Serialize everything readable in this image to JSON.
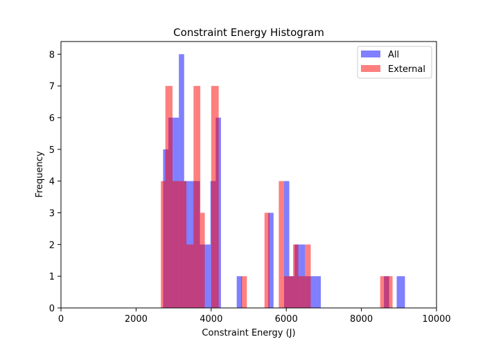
{
  "chart_data": {
    "type": "bar",
    "title": "Constraint Energy Histogram",
    "xlabel": "Constraint Energy (J)",
    "ylabel": "Frequency",
    "xlim": [
      0,
      10000
    ],
    "ylim": [
      0,
      8.4
    ],
    "xticks": [
      0,
      2000,
      4000,
      6000,
      8000,
      10000
    ],
    "yticks": [
      0,
      1,
      2,
      3,
      4,
      5,
      6,
      7,
      8
    ],
    "grid": false,
    "legend_position": "top-right",
    "series": [
      {
        "name": "All",
        "color": "#0000ff",
        "opacity": 0.5,
        "bins": [
          {
            "x0": 2720,
            "x1": 2860,
            "count": 5
          },
          {
            "x0": 2860,
            "x1": 3000,
            "count": 6
          },
          {
            "x0": 3000,
            "x1": 3140,
            "count": 6
          },
          {
            "x0": 3140,
            "x1": 3280,
            "count": 8
          },
          {
            "x0": 3280,
            "x1": 3420,
            "count": 4
          },
          {
            "x0": 3420,
            "x1": 3560,
            "count": 4
          },
          {
            "x0": 3560,
            "x1": 3700,
            "count": 4
          },
          {
            "x0": 3700,
            "x1": 3840,
            "count": 2
          },
          {
            "x0": 3840,
            "x1": 3980,
            "count": 2
          },
          {
            "x0": 3980,
            "x1": 4120,
            "count": 4
          },
          {
            "x0": 4120,
            "x1": 4260,
            "count": 6
          },
          {
            "x0": 4680,
            "x1": 4820,
            "count": 1
          },
          {
            "x0": 5520,
            "x1": 5660,
            "count": 3
          },
          {
            "x0": 5940,
            "x1": 6080,
            "count": 4
          },
          {
            "x0": 6080,
            "x1": 6220,
            "count": 1
          },
          {
            "x0": 6220,
            "x1": 6360,
            "count": 2
          },
          {
            "x0": 6360,
            "x1": 6500,
            "count": 2
          },
          {
            "x0": 6500,
            "x1": 6640,
            "count": 1
          },
          {
            "x0": 6640,
            "x1": 6780,
            "count": 1
          },
          {
            "x0": 6780,
            "x1": 6920,
            "count": 1
          },
          {
            "x0": 8600,
            "x1": 8740,
            "count": 1
          },
          {
            "x0": 8940,
            "x1": 9160,
            "count": 1
          }
        ]
      },
      {
        "name": "External",
        "color": "#ff0000",
        "opacity": 0.5,
        "bins": [
          {
            "x0": 2660,
            "x1": 2780,
            "count": 4
          },
          {
            "x0": 2780,
            "x1": 2970,
            "count": 7
          },
          {
            "x0": 2970,
            "x1": 3150,
            "count": 4
          },
          {
            "x0": 3150,
            "x1": 3340,
            "count": 4
          },
          {
            "x0": 3340,
            "x1": 3530,
            "count": 2
          },
          {
            "x0": 3530,
            "x1": 3710,
            "count": 7
          },
          {
            "x0": 3710,
            "x1": 3830,
            "count": 3
          },
          {
            "x0": 4000,
            "x1": 4200,
            "count": 7
          },
          {
            "x0": 4800,
            "x1": 4950,
            "count": 1
          },
          {
            "x0": 5420,
            "x1": 5550,
            "count": 3
          },
          {
            "x0": 5800,
            "x1": 5940,
            "count": 4
          },
          {
            "x0": 5940,
            "x1": 6050,
            "count": 1
          },
          {
            "x0": 6050,
            "x1": 6180,
            "count": 1
          },
          {
            "x0": 6180,
            "x1": 6320,
            "count": 2
          },
          {
            "x0": 6320,
            "x1": 6500,
            "count": 1
          },
          {
            "x0": 6500,
            "x1": 6650,
            "count": 2
          },
          {
            "x0": 8500,
            "x1": 8620,
            "count": 1
          },
          {
            "x0": 8620,
            "x1": 8830,
            "count": 1
          }
        ]
      }
    ]
  }
}
